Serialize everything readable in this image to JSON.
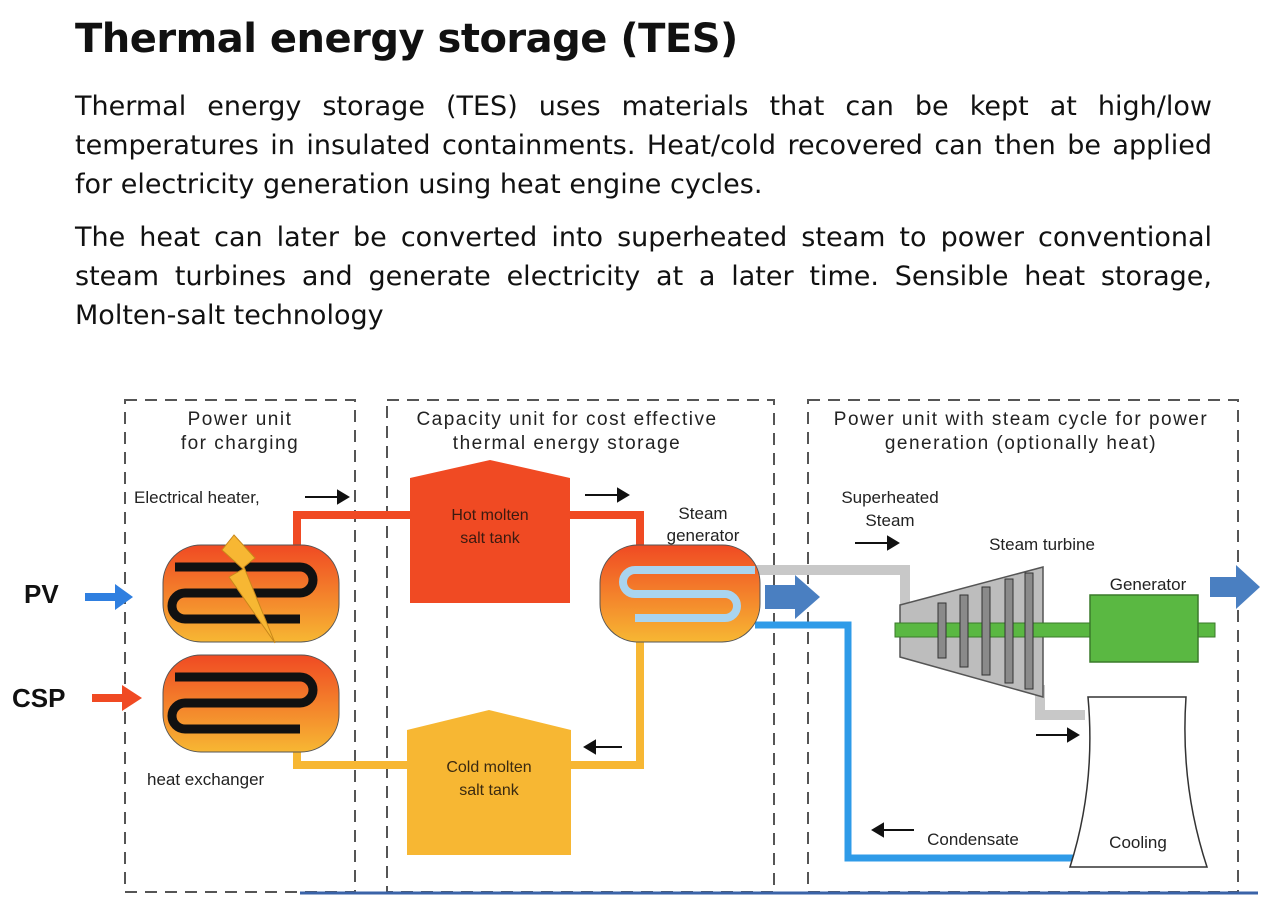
{
  "slide": {
    "title": "Thermal energy storage (TES)",
    "paragraph_1": "Thermal energy storage (TES) uses materials that can be kept at high/low temperatures in insulated containments. Heat/cold recovered can then be applied for electricity generation using heat engine cycles.",
    "paragraph_2": "The heat can later be converted into superheated steam to power conventional steam turbines and generate electricity at a later time. Sensible heat storage, Molten-salt technology"
  },
  "diagram": {
    "sections": {
      "charging_line1": "Power unit",
      "charging_line2": "for charging",
      "capacity_line1": "Capacity unit for cost effective",
      "capacity_line2": "thermal energy storage",
      "power_line1": "Power unit with steam cycle for power",
      "power_line2": "generation (optionally heat)"
    },
    "inputs": {
      "pv": "PV",
      "csp": "CSP"
    },
    "labels": {
      "electrical_heater": "Electrical heater,",
      "heat_exchanger": "heat exchanger",
      "hot_tank_line1": "Hot molten",
      "hot_tank_line2": "salt tank",
      "cold_tank_line1": "Cold molten",
      "cold_tank_line2": "salt tank",
      "steam_gen_line1": "Steam",
      "steam_gen_line2": "generator",
      "superheated_line1": "Superheated",
      "superheated_line2": "Steam",
      "steam_turbine": "Steam turbine",
      "generator": "Generator",
      "condensate": "Condensate",
      "cooling": "Cooling"
    },
    "colors": {
      "hot": "#f04a23",
      "cold": "#f7b733",
      "steam": "#c8c8c8",
      "water": "#2f9be8",
      "generator": "#5ab842",
      "output_arrow": "#4a7fc1"
    }
  }
}
